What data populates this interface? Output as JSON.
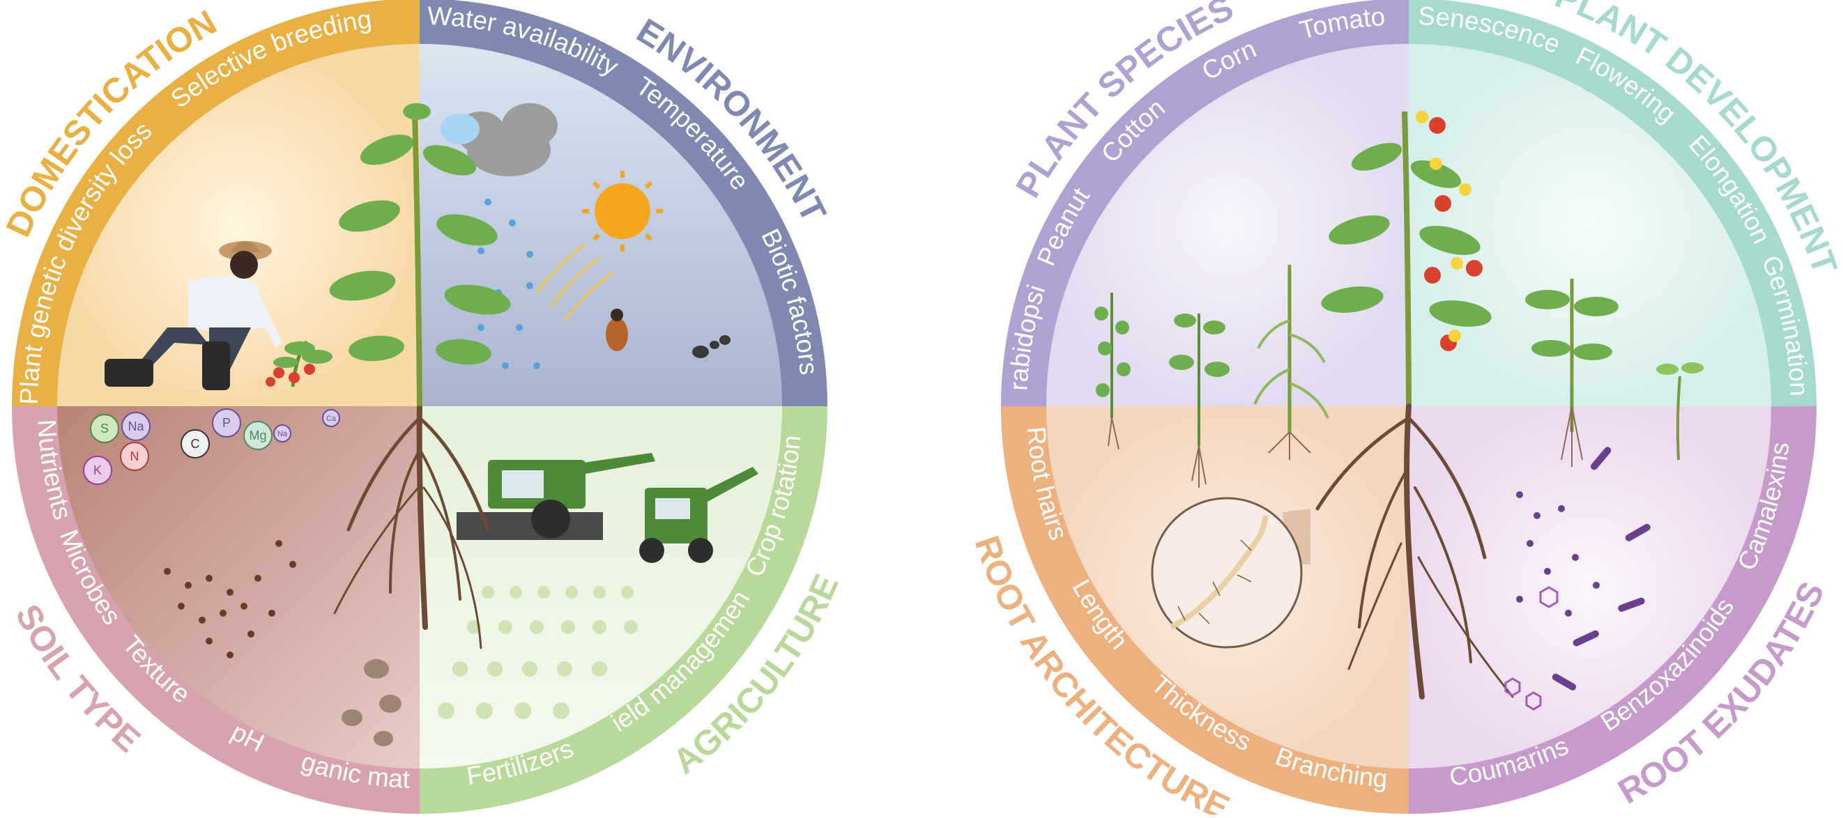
{
  "colors": {
    "domestication": "#E9B043",
    "environment": "#7E88B0",
    "soil_type": "#D7A3AE",
    "agriculture": "#B9D99A",
    "plant_species": "#AFA2D3",
    "plant_development": "#A7DACF",
    "root_architecture": "#EDB07F",
    "root_exudates": "#C69ACA",
    "soil": "#A86F55",
    "root": "#6D4A35",
    "leaf": "#6FAE4F",
    "stem": "#7A9B3C",
    "tomato_red": "#D9412E",
    "sun": "#F4A621",
    "cloud": "#9C9C9C",
    "machine_green": "#4E8A3A"
  },
  "left_wheel": {
    "domestication": {
      "title": "DOMESTICATION",
      "factors": [
        "Plant genetic diversity loss",
        "Selective breeding"
      ]
    },
    "environment": {
      "title": "ENVIRONMENT",
      "factors": [
        "Water availability",
        "Temperature",
        "Biotic factors"
      ]
    },
    "soil_type": {
      "title": "SOIL TYPE",
      "factors": [
        "Nutrients",
        "Microbes",
        "Texture",
        "pH",
        "Organic matter"
      ]
    },
    "agriculture": {
      "title": "AGRICULTURE",
      "factors": [
        "Fertilizers",
        "Field management",
        "Crop rotation"
      ]
    },
    "nutrient_symbols": [
      "S",
      "Na",
      "P",
      "Na",
      "Ca",
      "N",
      "C",
      "Mg",
      "K"
    ]
  },
  "right_wheel": {
    "plant_species": {
      "title": "PLANT SPECIES",
      "factors": [
        "Arabidopsis",
        "Peanut",
        "Cotton",
        "Corn",
        "Tomato"
      ]
    },
    "plant_development": {
      "title": "PLANT DEVELOPMENT",
      "factors": [
        "Senescence",
        "Flowering",
        "Elongation",
        "Germination"
      ]
    },
    "root_architecture": {
      "title": "ROOT ARCHITECTURE",
      "factors": [
        "Root hairs",
        "Length",
        "Thickness",
        "Branching"
      ]
    },
    "root_exudates": {
      "title": "ROOT EXUDATES",
      "factors": [
        "Coumarins",
        "Benzoxazinoids",
        "Camalexins"
      ]
    }
  }
}
